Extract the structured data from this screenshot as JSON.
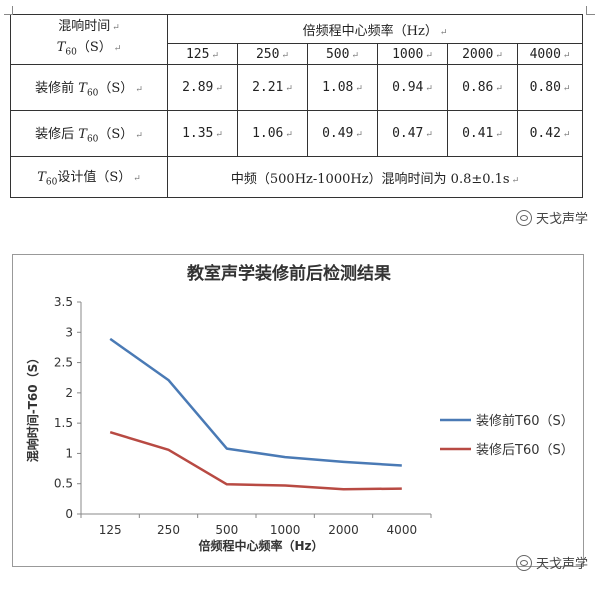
{
  "table": {
    "header_left_line1": "混响时间",
    "header_left_line2_prefix": "T",
    "header_left_line2_sub": "60",
    "header_left_line2_suffix": "（S）",
    "header_group": "倍频程中心频率（Hz）",
    "frequencies": [
      "125",
      "250",
      "500",
      "1000",
      "2000",
      "4000"
    ],
    "rows": [
      {
        "label_prefix": "装修前 ",
        "label_t": "T",
        "label_sub": "60",
        "label_suffix": "（S）",
        "values": [
          "2.89",
          "2.21",
          "1.08",
          "0.94",
          "0.86",
          "0.80"
        ]
      },
      {
        "label_prefix": "装修后 ",
        "label_t": "T",
        "label_sub": "60",
        "label_suffix": "（S）",
        "values": [
          "1.35",
          "1.06",
          "0.49",
          "0.47",
          "0.41",
          "0.42"
        ]
      }
    ],
    "note_label_t": "T",
    "note_label_sub": "60",
    "note_label_suffix": "设计值（S）",
    "note_text": "中频（500Hz-1000Hz）混响时间为 0.8±0.1s",
    "para_mark": "↵"
  },
  "watermark_text": "天戈声学",
  "chart_data": {
    "type": "line",
    "title": "教室声学装修前后检测结果",
    "xlabel": "倍频程中心频率（Hz）",
    "ylabel": "混响时间-T60（S）",
    "categories": [
      "125",
      "250",
      "500",
      "1000",
      "2000",
      "4000"
    ],
    "ylim": [
      0,
      3.5
    ],
    "yticks": [
      "0",
      "0.5",
      "1",
      "1.5",
      "2",
      "2.5",
      "3",
      "3.5"
    ],
    "grid": false,
    "legend_position": "right",
    "series": [
      {
        "name": "装修前T60（S）",
        "color": "#4a7ab5",
        "values": [
          2.89,
          2.21,
          1.08,
          0.94,
          0.86,
          0.8
        ]
      },
      {
        "name": "装修后T60（S）",
        "color": "#b84a43",
        "values": [
          1.35,
          1.06,
          0.49,
          0.47,
          0.41,
          0.42
        ]
      }
    ]
  }
}
